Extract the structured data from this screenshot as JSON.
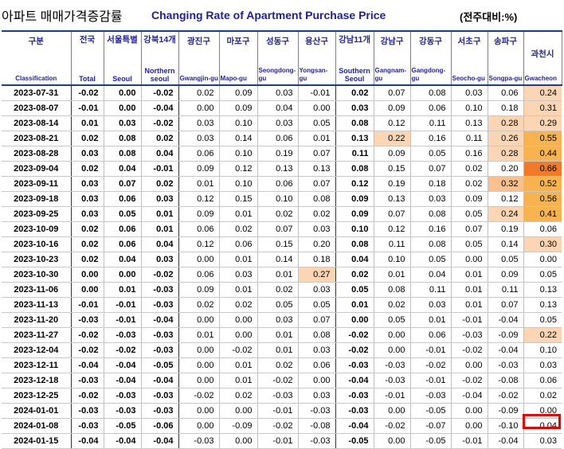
{
  "header": {
    "title_ko": "아파트 매매가격증감률",
    "title_en": "Changing Rate of Apartment Purchase Price",
    "unit": "(전주대비:%)"
  },
  "columns": [
    {
      "ko": "구분",
      "en": "Classification"
    },
    {
      "ko": "전국",
      "en": "Total"
    },
    {
      "ko": "서울특별",
      "en": "Seoul"
    },
    {
      "ko": "강북14개",
      "en": "Northern seoul"
    },
    {
      "ko": "광진구",
      "en": "Gwangjin-gu"
    },
    {
      "ko": "마포구",
      "en": "Mapo-gu"
    },
    {
      "ko": "성동구",
      "en": "Seongdong-gu"
    },
    {
      "ko": "용산구",
      "en": "Yongsan-gu"
    },
    {
      "ko": "강남11개",
      "en": "Southern Seoul"
    },
    {
      "ko": "강남구",
      "en": "Gangnam-gu"
    },
    {
      "ko": "강동구",
      "en": "Gangdong-gu"
    },
    {
      "ko": "서초구",
      "en": "Seocho-gu"
    },
    {
      "ko": "송파구",
      "en": "Songpa-gu"
    },
    {
      "ko": "과천시",
      "en": "Gwacheon"
    }
  ],
  "colors": {
    "header_text": "#1f1f9c",
    "border": "#1f3a8a",
    "hl_light": "#fcd5b5",
    "hl_mid": "#fac090",
    "hl_strong": "#f7b350",
    "hl_orange": "#f5a623",
    "hl_dark": "#f0792a",
    "selection": "#e00000"
  },
  "rows": [
    {
      "date": "2023-07-31",
      "v": [
        "-0.02",
        "0.00",
        "-0.02",
        "0.02",
        "0.09",
        "0.03",
        "-0.01",
        "0.02",
        "0.07",
        "0.08",
        "0.03",
        "0.06",
        "0.24"
      ],
      "hl": {
        "12": "hl_light"
      }
    },
    {
      "date": "2023-08-07",
      "v": [
        "-0.01",
        "0.00",
        "-0.04",
        "0.00",
        "0.09",
        "0.04",
        "0.00",
        "0.03",
        "0.09",
        "0.06",
        "0.10",
        "0.18",
        "0.31"
      ],
      "hl": {
        "12": "hl_light"
      }
    },
    {
      "date": "2023-08-14",
      "v": [
        "0.01",
        "0.03",
        "-0.02",
        "0.03",
        "0.10",
        "0.03",
        "0.05",
        "0.08",
        "0.12",
        "0.11",
        "0.13",
        "0.28",
        "0.29"
      ],
      "hl": {
        "11": "hl_light",
        "12": "hl_light"
      }
    },
    {
      "date": "2023-08-21",
      "v": [
        "0.02",
        "0.08",
        "0.02",
        "0.03",
        "0.14",
        "0.06",
        "0.01",
        "0.13",
        "0.22",
        "0.16",
        "0.11",
        "0.26",
        "0.55"
      ],
      "hl": {
        "8": "hl_light",
        "11": "hl_light",
        "12": "hl_strong"
      }
    },
    {
      "date": "2023-08-28",
      "v": [
        "0.03",
        "0.08",
        "0.04",
        "0.06",
        "0.10",
        "0.19",
        "0.07",
        "0.11",
        "0.09",
        "0.05",
        "0.16",
        "0.28",
        "0.44"
      ],
      "hl": {
        "11": "hl_light",
        "12": "hl_strong"
      }
    },
    {
      "date": "2023-09-04",
      "v": [
        "0.02",
        "0.04",
        "-0.01",
        "0.09",
        "0.12",
        "0.13",
        "0.13",
        "0.08",
        "0.15",
        "0.07",
        "0.02",
        "0.20",
        "0.66"
      ],
      "hl": {
        "12": "hl_dark"
      }
    },
    {
      "date": "2023-09-11",
      "v": [
        "0.03",
        "0.07",
        "0.02",
        "0.01",
        "0.10",
        "0.06",
        "0.07",
        "0.12",
        "0.19",
        "0.18",
        "0.02",
        "0.32",
        "0.52"
      ],
      "hl": {
        "11": "hl_mid",
        "12": "hl_strong"
      }
    },
    {
      "date": "2023-09-18",
      "v": [
        "0.03",
        "0.06",
        "0.03",
        "0.12",
        "0.15",
        "0.10",
        "0.08",
        "0.09",
        "0.13",
        "0.03",
        "0.09",
        "0.12",
        "0.56"
      ],
      "hl": {
        "12": "hl_strong"
      }
    },
    {
      "date": "2023-09-25",
      "v": [
        "0.03",
        "0.05",
        "0.01",
        "0.09",
        "0.01",
        "0.02",
        "0.02",
        "0.09",
        "0.07",
        "0.08",
        "0.05",
        "0.24",
        "0.41"
      ],
      "hl": {
        "11": "hl_light",
        "12": "hl_strong"
      }
    },
    {
      "date": "2023-10-09",
      "v": [
        "0.02",
        "0.06",
        "0.01",
        "0.06",
        "0.02",
        "0.07",
        "0.03",
        "0.10",
        "0.12",
        "0.16",
        "0.07",
        "0.19",
        "0.06"
      ],
      "hl": {}
    },
    {
      "date": "2023-10-16",
      "v": [
        "0.02",
        "0.06",
        "0.04",
        "0.12",
        "0.06",
        "0.15",
        "0.20",
        "0.08",
        "0.11",
        "0.08",
        "0.05",
        "0.14",
        "0.30"
      ],
      "hl": {
        "12": "hl_light"
      }
    },
    {
      "date": "2023-10-23",
      "v": [
        "0.02",
        "0.04",
        "0.03",
        "0.00",
        "0.01",
        "0.14",
        "0.18",
        "0.04",
        "0.10",
        "0.05",
        "0.00",
        "0.05",
        "0.00"
      ],
      "hl": {}
    },
    {
      "date": "2023-10-30",
      "v": [
        "0.00",
        "0.00",
        "-0.02",
        "0.06",
        "0.03",
        "0.01",
        "0.27",
        "0.02",
        "0.01",
        "0.04",
        "0.01",
        "0.09",
        "0.05"
      ],
      "hl": {
        "6": "hl_light"
      }
    },
    {
      "date": "2023-11-06",
      "v": [
        "0.00",
        "0.01",
        "-0.03",
        "0.09",
        "0.01",
        "0.02",
        "0.03",
        "0.05",
        "0.08",
        "0.11",
        "0.01",
        "0.11",
        "0.13"
      ],
      "hl": {}
    },
    {
      "date": "2023-11-13",
      "v": [
        "-0.01",
        "-0.01",
        "-0.03",
        "0.02",
        "0.02",
        "0.05",
        "0.05",
        "0.01",
        "0.02",
        "0.03",
        "0.01",
        "0.07",
        "0.13"
      ],
      "hl": {}
    },
    {
      "date": "2023-11-20",
      "v": [
        "-0.03",
        "-0.01",
        "-0.04",
        "0.00",
        "0.00",
        "0.03",
        "0.07",
        "0.00",
        "0.05",
        "0.01",
        "-0.01",
        "-0.04",
        "0.05"
      ],
      "hl": {}
    },
    {
      "date": "2023-11-27",
      "v": [
        "-0.02",
        "-0.03",
        "-0.03",
        "0.01",
        "0.00",
        "0.01",
        "0.08",
        "-0.02",
        "0.00",
        "0.06",
        "-0.03",
        "-0.09",
        "0.22"
      ],
      "hl": {
        "12": "hl_light"
      }
    },
    {
      "date": "2023-12-04",
      "v": [
        "-0.02",
        "-0.02",
        "-0.03",
        "0.00",
        "-0.02",
        "0.01",
        "0.03",
        "-0.02",
        "0.00",
        "-0.01",
        "-0.02",
        "-0.04",
        "0.10"
      ],
      "hl": {}
    },
    {
      "date": "2023-12-11",
      "v": [
        "-0.04",
        "-0.04",
        "-0.05",
        "0.00",
        "0.01",
        "0.02",
        "0.06",
        "-0.03",
        "-0.03",
        "-0.02",
        "0.00",
        "-0.03",
        "0.03"
      ],
      "hl": {}
    },
    {
      "date": "2023-12-18",
      "v": [
        "-0.03",
        "-0.04",
        "-0.04",
        "0.00",
        "0.01",
        "-0.02",
        "0.00",
        "-0.04",
        "-0.03",
        "-0.01",
        "-0.02",
        "-0.08",
        "0.06"
      ],
      "hl": {}
    },
    {
      "date": "2023-12-25",
      "v": [
        "-0.02",
        "-0.03",
        "-0.03",
        "-0.02",
        "0.02",
        "-0.03",
        "0.03",
        "-0.03",
        "-0.01",
        "-0.03",
        "-0.04",
        "-0.02",
        "0.02"
      ],
      "hl": {}
    },
    {
      "date": "2024-01-01",
      "v": [
        "-0.03",
        "-0.03",
        "-0.03",
        "0.00",
        "0.00",
        "-0.01",
        "-0.03",
        "-0.03",
        "0.00",
        "-0.05",
        "0.00",
        "-0.09",
        "0.00"
      ],
      "hl": {}
    },
    {
      "date": "2024-01-08",
      "v": [
        "-0.03",
        "-0.05",
        "-0.06",
        "0.00",
        "-0.09",
        "-0.02",
        "-0.08",
        "-0.04",
        "-0.02",
        "-0.07",
        "0.00",
        "-0.10",
        "0.04"
      ],
      "hl": {}
    },
    {
      "date": "2024-01-15",
      "v": [
        "-0.04",
        "-0.04",
        "-0.04",
        "-0.03",
        "0.00",
        "-0.01",
        "-0.03",
        "-0.05",
        "0.00",
        "-0.05",
        "-0.01",
        "-0.04",
        "0.03"
      ],
      "hl": {}
    }
  ]
}
